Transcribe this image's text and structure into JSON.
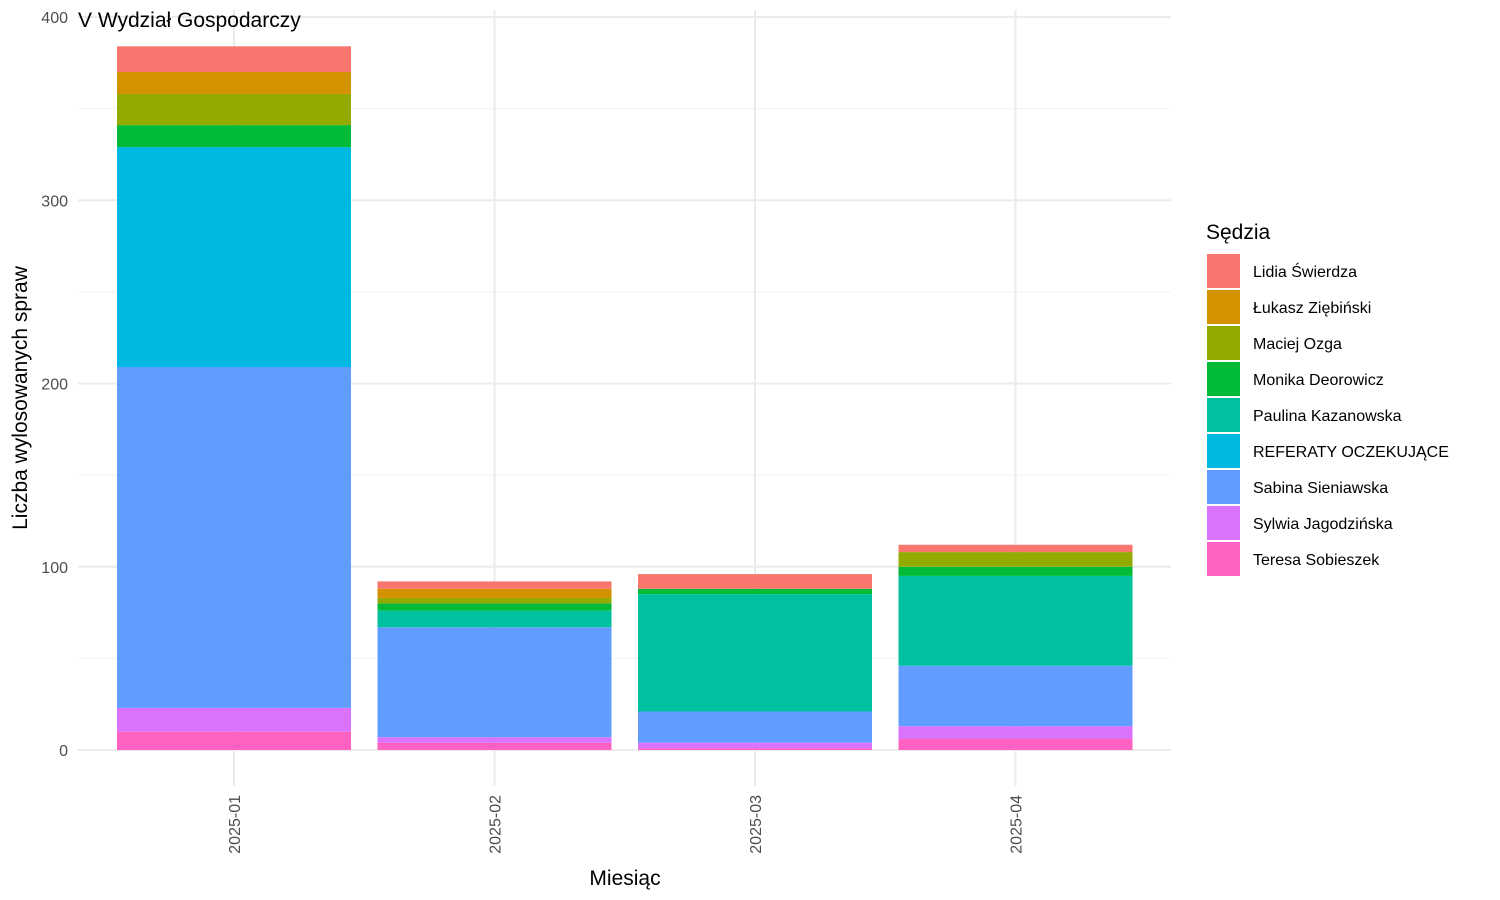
{
  "chart_data": {
    "type": "bar",
    "stacked": true,
    "title": "V Wydział Gospodarczy",
    "xlabel": "Miesiąc",
    "ylabel": "Liczba wylosowanych spraw",
    "ylim": [
      0,
      400
    ],
    "yticks": [
      0,
      100,
      200,
      300,
      400
    ],
    "grid": true,
    "legend": {
      "title": "Sędzia",
      "placement": "right"
    },
    "categories": [
      "2025-01",
      "2025-02",
      "2025-03",
      "2025-04"
    ],
    "series": [
      {
        "name": "Teresa Sobieszek",
        "color": "#FF61C3",
        "values": [
          10,
          4,
          1,
          6
        ]
      },
      {
        "name": "Sylwia Jagodzińska",
        "color": "#DB72FB",
        "values": [
          13,
          3,
          3,
          7
        ]
      },
      {
        "name": "Sabina Sieniawska",
        "color": "#619CFF",
        "values": [
          186,
          60,
          17,
          33
        ]
      },
      {
        "name": "REFERATY OCZEKUJĄCE",
        "color": "#00B9E3",
        "values": [
          120,
          0,
          0,
          0
        ]
      },
      {
        "name": "Paulina Kazanowska",
        "color": "#00C19F",
        "values": [
          0,
          9,
          64,
          49
        ]
      },
      {
        "name": "Monika Deorowicz",
        "color": "#00BA38",
        "values": [
          12,
          4,
          3,
          5
        ]
      },
      {
        "name": "Maciej Ozga",
        "color": "#93AA00",
        "values": [
          17,
          3,
          0,
          8
        ]
      },
      {
        "name": "Łukasz Ziębiński",
        "color": "#D39200",
        "values": [
          12,
          5,
          0,
          0
        ]
      },
      {
        "name": "Lidia Świerdza",
        "color": "#F8766D",
        "values": [
          14,
          4,
          8,
          4
        ]
      }
    ]
  }
}
